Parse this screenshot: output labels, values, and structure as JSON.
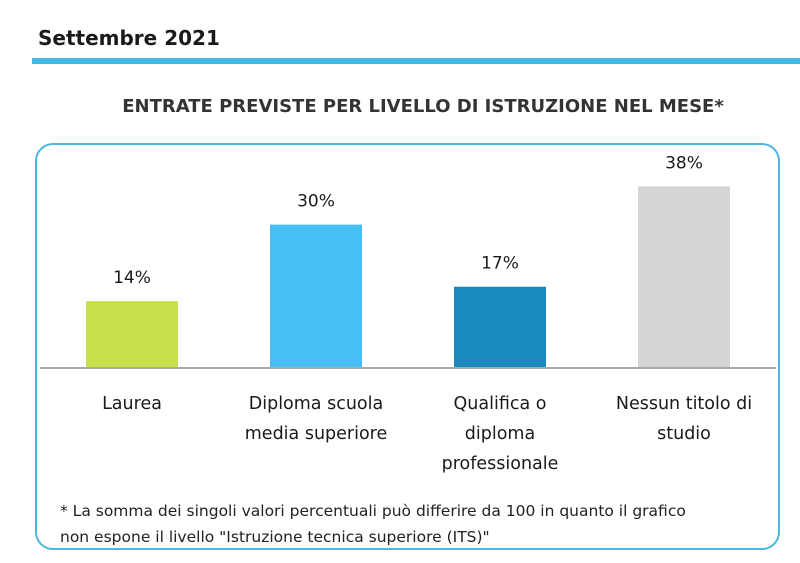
{
  "header": {
    "title": "Settembre 2021",
    "accent_color": "#43b9e6"
  },
  "chart_data": {
    "type": "bar",
    "title": "ENTRATE PREVISTE PER LIVELLO DI ISTRUZIONE NEL MESE*",
    "categories": [
      [
        "Laurea"
      ],
      [
        "Diploma scuola",
        "media superiore"
      ],
      [
        "Qualifica o",
        "diploma",
        "professionale"
      ],
      [
        "Nessun titolo di",
        "studio"
      ]
    ],
    "values": [
      14,
      30,
      17,
      38
    ],
    "value_labels": [
      "14%",
      "30%",
      "17%",
      "38%"
    ],
    "unit": "%",
    "colors": [
      "#c9e04c",
      "#45bff5",
      "#1b8bbf",
      "#d4d4d4"
    ],
    "ylim": [
      0,
      40
    ],
    "grid": false,
    "legend": "none"
  },
  "footnote": {
    "line1": "* La somma dei singoli valori percentuali può differire da 100 in quanto il grafico",
    "line2": "non espone il livello \"Istruzione tecnica superiore (ITS)\""
  }
}
